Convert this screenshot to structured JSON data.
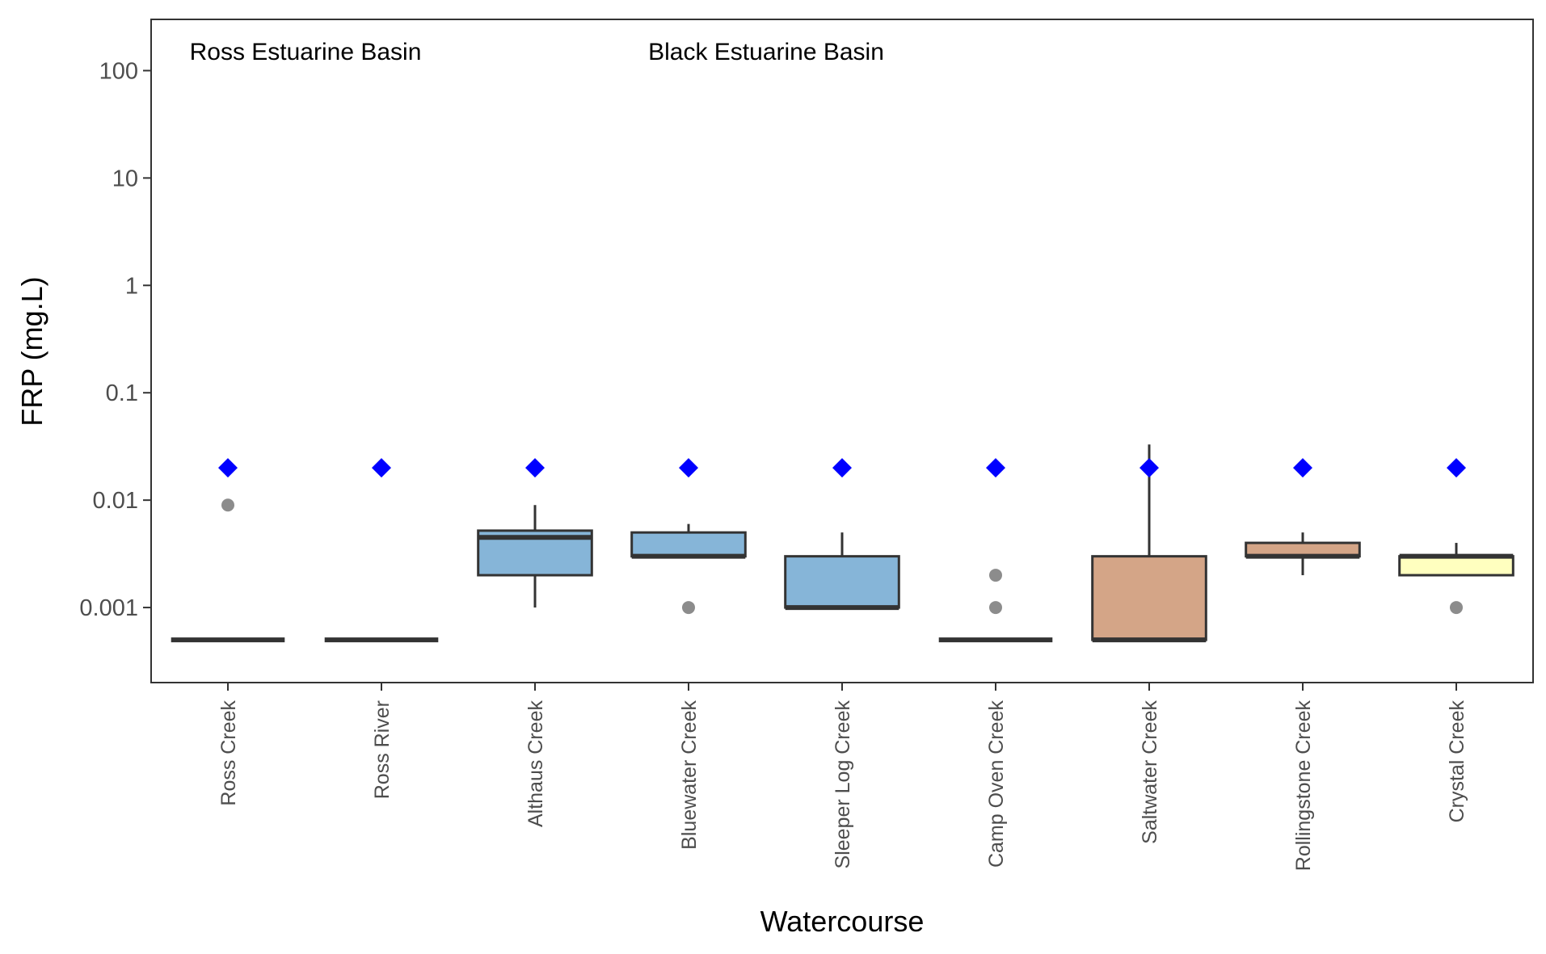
{
  "chart_data": {
    "type": "box",
    "xlabel": "Watercourse",
    "ylabel": "FRP (mg.L)",
    "yscale": "log10",
    "ylim": [
      0.0002,
      300
    ],
    "y_ticks": [
      0.001,
      0.01,
      0.1,
      1,
      10,
      100
    ],
    "y_tick_labels": [
      "0.001",
      "0.01",
      "0.1",
      "1",
      "10",
      "100"
    ],
    "grid": false,
    "annotations": [
      {
        "text": "Ross Estuarine Basin",
        "x_category": "Ross Creek",
        "y": 150
      },
      {
        "text": "Black Estuarine Basin",
        "x_category": "Bluewater Creek",
        "y": 150
      }
    ],
    "categories": [
      "Ross Creek",
      "Ross River",
      "Althaus Creek",
      "Bluewater Creek",
      "Sleeper Log Creek",
      "Camp Oven Creek",
      "Saltwater Creek",
      "Rollingstone Creek",
      "Crystal Creek"
    ],
    "boxes": [
      {
        "category": "Ross Creek",
        "q1": 0.0005,
        "median": 0.0005,
        "q3": 0.0005,
        "whisker_low": 0.0005,
        "whisker_high": 0.0005,
        "outliers": [
          0.009
        ],
        "fill": "#86b5d8"
      },
      {
        "category": "Ross River",
        "q1": 0.0005,
        "median": 0.0005,
        "q3": 0.0005,
        "whisker_low": 0.0005,
        "whisker_high": 0.0005,
        "outliers": [],
        "fill": "#86b5d8"
      },
      {
        "category": "Althaus Creek",
        "q1": 0.002,
        "median": 0.0045,
        "q3": 0.0052,
        "whisker_low": 0.001,
        "whisker_high": 0.009,
        "outliers": [],
        "fill": "#86b5d8"
      },
      {
        "category": "Bluewater Creek",
        "q1": 0.003,
        "median": 0.003,
        "q3": 0.005,
        "whisker_low": 0.003,
        "whisker_high": 0.006,
        "outliers": [
          0.001
        ],
        "fill": "#86b5d8"
      },
      {
        "category": "Sleeper Log Creek",
        "q1": 0.001,
        "median": 0.001,
        "q3": 0.003,
        "whisker_low": 0.001,
        "whisker_high": 0.005,
        "outliers": [],
        "fill": "#86b5d8"
      },
      {
        "category": "Camp Oven Creek",
        "q1": 0.0005,
        "median": 0.0005,
        "q3": 0.0005,
        "whisker_low": 0.0005,
        "whisker_high": 0.0005,
        "outliers": [
          0.002,
          0.001
        ],
        "fill": "#86b5d8"
      },
      {
        "category": "Saltwater Creek",
        "q1": 0.0005,
        "median": 0.0005,
        "q3": 0.003,
        "whisker_low": 0.0005,
        "whisker_high": 0.033,
        "outliers": [],
        "fill": "#d4a587"
      },
      {
        "category": "Rollingstone Creek",
        "q1": 0.003,
        "median": 0.003,
        "q3": 0.004,
        "whisker_low": 0.002,
        "whisker_high": 0.005,
        "outliers": [],
        "fill": "#d4a587"
      },
      {
        "category": "Crystal Creek",
        "q1": 0.002,
        "median": 0.003,
        "q3": 0.003,
        "whisker_low": 0.002,
        "whisker_high": 0.004,
        "outliers": [
          0.001
        ],
        "fill": "#ffffbf"
      }
    ],
    "guideline_points": [
      {
        "category": "Ross Creek",
        "y": 0.02
      },
      {
        "category": "Ross River",
        "y": 0.02
      },
      {
        "category": "Althaus Creek",
        "y": 0.02
      },
      {
        "category": "Bluewater Creek",
        "y": 0.02
      },
      {
        "category": "Sleeper Log Creek",
        "y": 0.02
      },
      {
        "category": "Camp Oven Creek",
        "y": 0.02
      },
      {
        "category": "Saltwater Creek",
        "y": 0.02
      },
      {
        "category": "Rollingstone Creek",
        "y": 0.02
      },
      {
        "category": "Crystal Creek",
        "y": 0.02
      }
    ],
    "colors": {
      "guideline_marker": "#0000ff",
      "box_outline": "#333333",
      "outlier": "#808080",
      "panel_border": "#333333"
    }
  }
}
